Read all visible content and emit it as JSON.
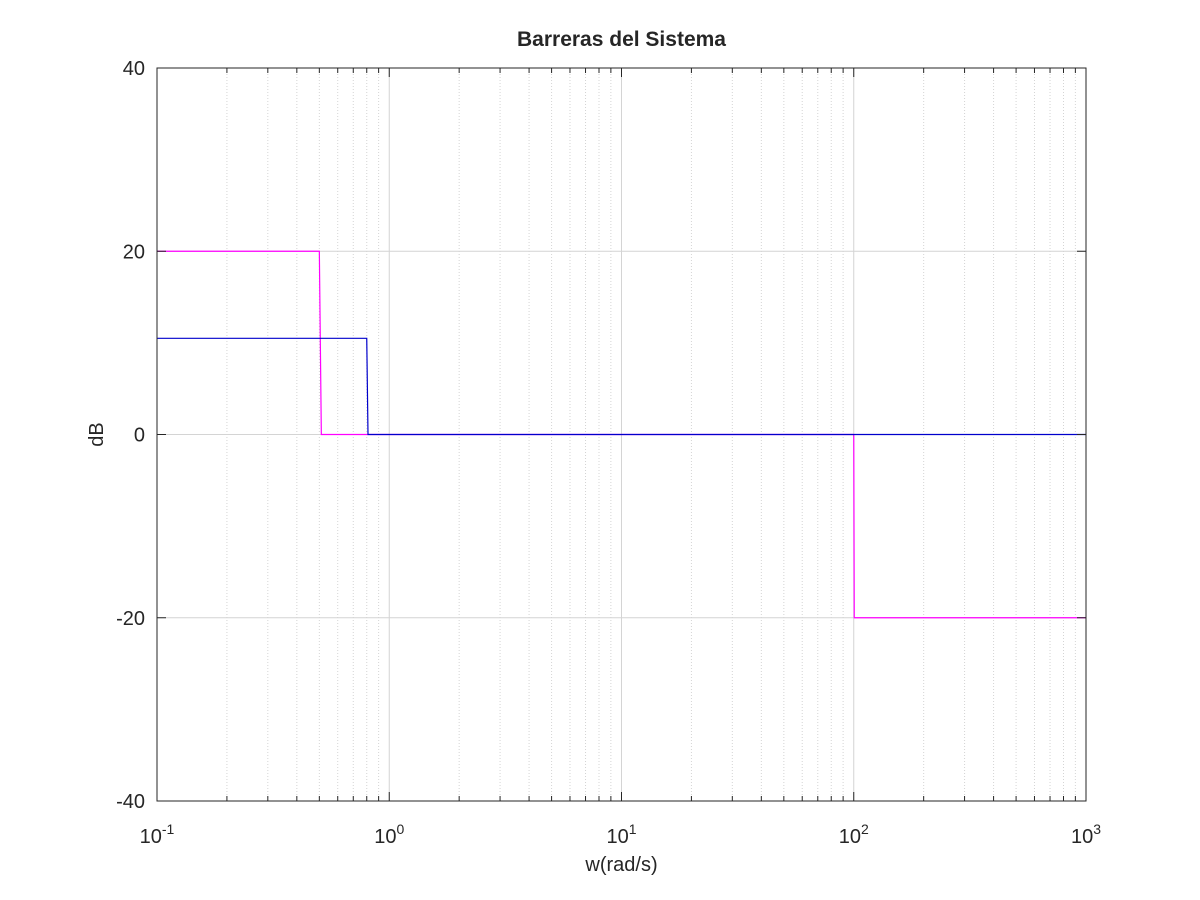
{
  "chart_data": {
    "type": "line",
    "title": "Barreras del Sistema",
    "xlabel": "w(rad/s)",
    "ylabel": "dB",
    "x_scale": "log",
    "xlim": [
      0.1,
      1000
    ],
    "ylim": [
      -40,
      40
    ],
    "grid": true,
    "x_ticks": [
      {
        "value": 0.1,
        "base": "10",
        "exp": "-1"
      },
      {
        "value": 1,
        "base": "10",
        "exp": "0"
      },
      {
        "value": 10,
        "base": "10",
        "exp": "1"
      },
      {
        "value": 100,
        "base": "10",
        "exp": "2"
      },
      {
        "value": 1000,
        "base": "10",
        "exp": "3"
      }
    ],
    "y_ticks": [
      {
        "value": 40,
        "label": "40"
      },
      {
        "value": 20,
        "label": "20"
      },
      {
        "value": 0,
        "label": "0"
      },
      {
        "value": -20,
        "label": "-20"
      },
      {
        "value": -40,
        "label": "-40"
      }
    ],
    "series": [
      {
        "color": "#ff00ff",
        "x": [
          0.1,
          0.5,
          0.51,
          100,
          100.5,
          1000
        ],
        "y": [
          20,
          20,
          0,
          0,
          -20,
          -20
        ]
      },
      {
        "color": "#0000cc",
        "x": [
          0.1,
          0.8,
          0.81,
          1000
        ],
        "y": [
          10.5,
          10.5,
          0,
          0
        ]
      }
    ]
  }
}
